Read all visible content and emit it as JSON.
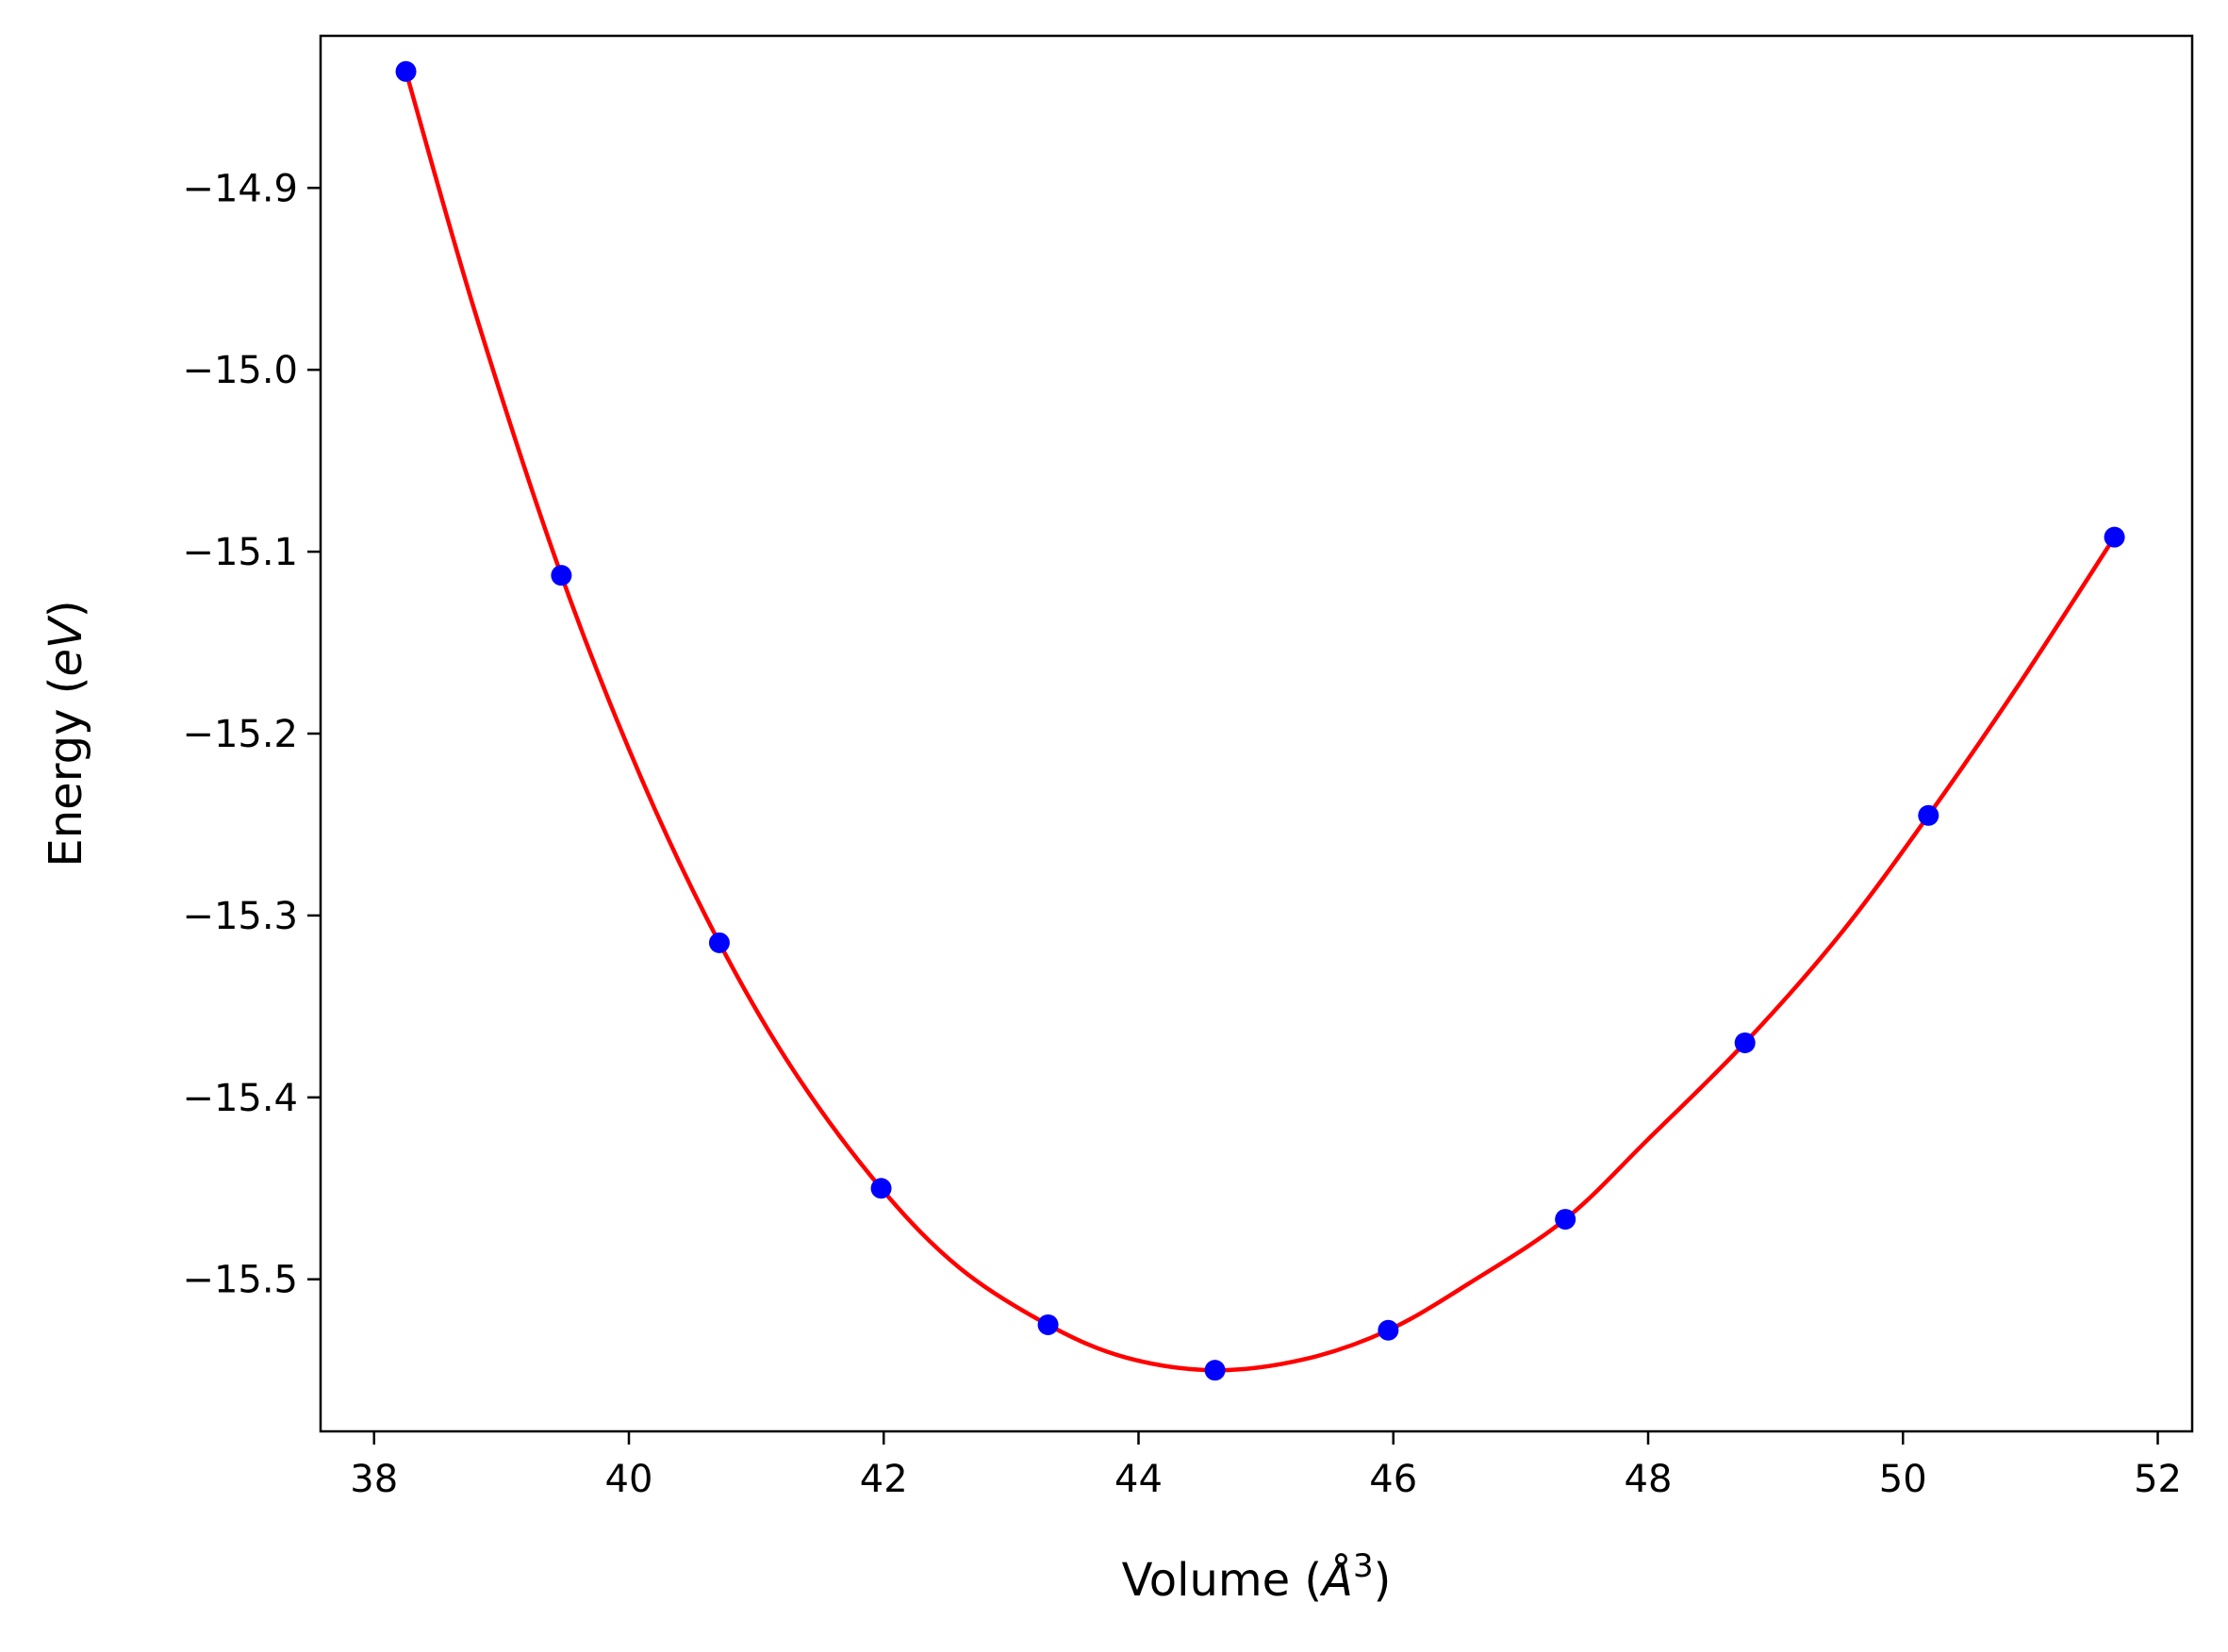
{
  "chart_data": {
    "type": "scatter",
    "xlabel": "Volume (",
    "xlabel_symbol": "Å",
    "xlabel_exp": "3",
    "xlabel_close": ")",
    "ylabel": "Energy (",
    "ylabel_unit": "eV",
    "ylabel_close": ")",
    "xlim": [
      37.58,
      52.27
    ],
    "ylim": [
      -15.5836,
      -14.8164
    ],
    "x_ticks": [
      38,
      40,
      42,
      44,
      46,
      48,
      50,
      52
    ],
    "x_tick_labels": [
      "38",
      "40",
      "42",
      "44",
      "46",
      "48",
      "50",
      "52"
    ],
    "y_ticks": [
      -15.5,
      -15.4,
      -15.3,
      -15.2,
      -15.1,
      -15.0,
      -14.9
    ],
    "y_tick_labels": [
      "−15.5",
      "−15.4",
      "−15.3",
      "−15.2",
      "−15.1",
      "−15.0",
      "−14.9"
    ],
    "grid": false,
    "series": [
      {
        "kind": "points",
        "color": "#0000ff",
        "x": [
          38.25,
          39.47,
          40.71,
          41.98,
          43.29,
          44.6,
          45.96,
          47.35,
          48.76,
          50.2,
          51.66
        ],
        "y": [
          -14.836,
          -15.113,
          -15.315,
          -15.45,
          -15.525,
          -15.55,
          -15.528,
          -15.467,
          -15.37,
          -15.245,
          -15.092
        ]
      },
      {
        "kind": "fit-curve",
        "color": "#ff0000",
        "x": [
          38.25,
          38.8,
          39.47,
          40.1,
          40.71,
          41.3,
          41.98,
          42.6,
          43.29,
          43.9,
          44.6,
          45.3,
          45.96,
          46.6,
          47.35,
          48.0,
          48.76,
          49.5,
          50.2,
          50.9,
          51.66
        ],
        "y": [
          -14.836,
          -14.97,
          -15.113,
          -15.225,
          -15.315,
          -15.386,
          -15.45,
          -15.494,
          -15.525,
          -15.543,
          -15.55,
          -15.544,
          -15.528,
          -15.502,
          -15.467,
          -15.423,
          -15.37,
          -15.311,
          -15.245,
          -15.174,
          -15.092
        ]
      }
    ],
    "colors": {
      "axes": "#000000",
      "background": "#ffffff"
    }
  }
}
